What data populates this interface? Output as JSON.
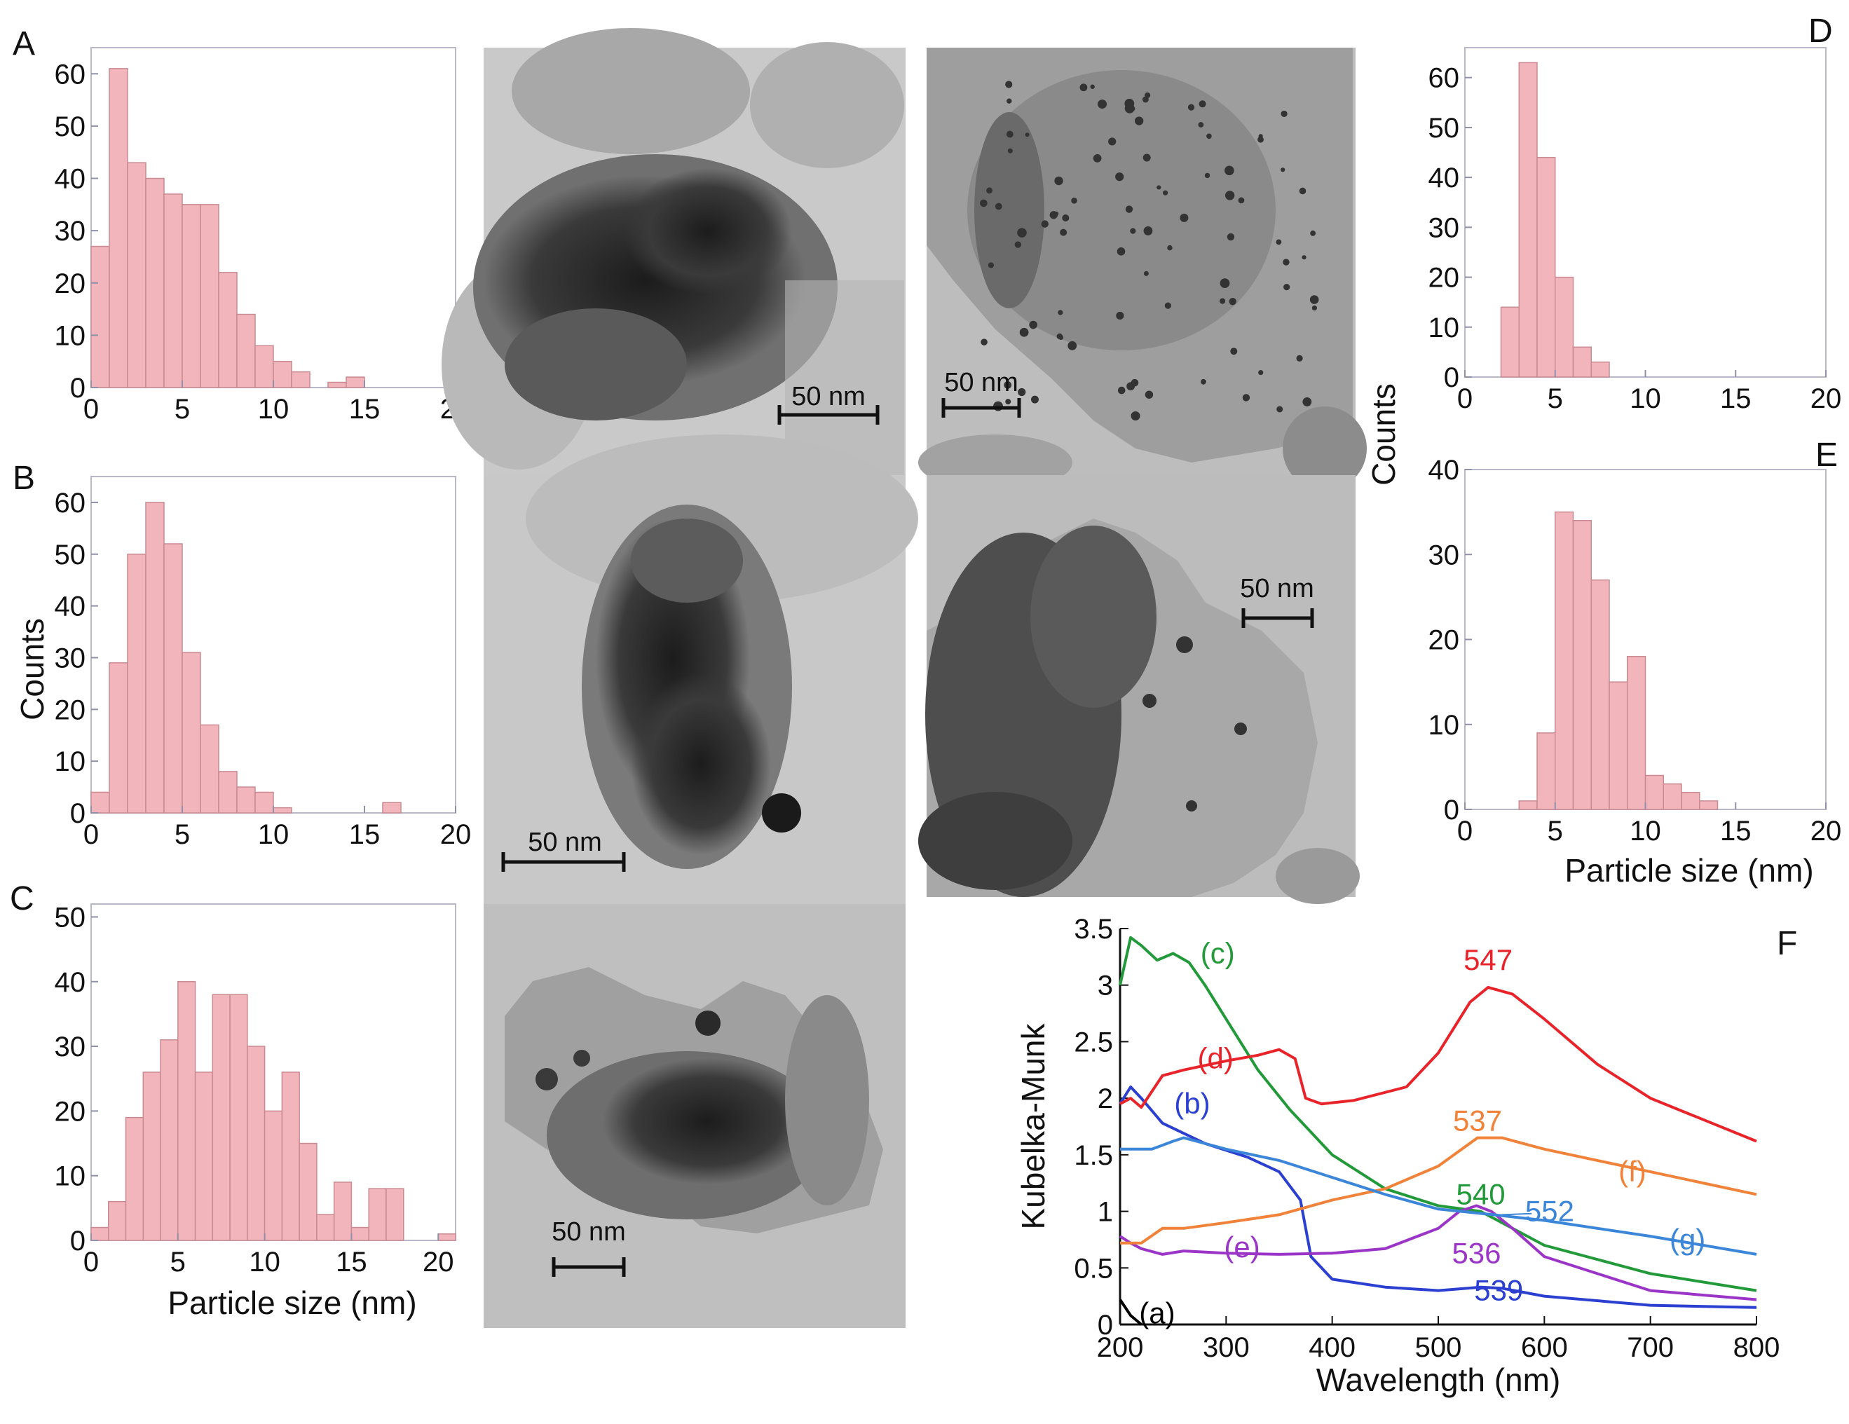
{
  "panel_labels": {
    "A": "A",
    "B": "B",
    "C": "C",
    "D": "D",
    "E": "E",
    "F": "F"
  },
  "histograms": {
    "A": {
      "yticks": [
        "0",
        "10",
        "20",
        "30",
        "40",
        "50",
        "60"
      ],
      "ymax": 65,
      "xticks": [
        "0",
        "5",
        "10",
        "15",
        "20"
      ],
      "xmax": 20,
      "values": [
        27,
        61,
        43,
        40,
        37,
        35,
        35,
        22,
        14,
        8,
        5,
        3,
        0,
        1,
        2,
        0,
        0,
        0,
        0,
        0
      ]
    },
    "B": {
      "yticks": [
        "0",
        "10",
        "20",
        "30",
        "40",
        "50",
        "60"
      ],
      "ymax": 65,
      "xticks": [
        "0",
        "5",
        "10",
        "15",
        "20"
      ],
      "xmax": 20,
      "values": [
        4,
        29,
        50,
        60,
        52,
        31,
        17,
        8,
        5,
        4,
        1,
        0,
        0,
        0,
        0,
        0,
        2,
        0,
        0,
        0
      ]
    },
    "C": {
      "yticks": [
        "0",
        "10",
        "20",
        "30",
        "40",
        "50"
      ],
      "ymax": 52,
      "xticks": [
        "0",
        "5",
        "10",
        "15",
        "20"
      ],
      "xmax": 21,
      "values": [
        2,
        6,
        19,
        26,
        31,
        40,
        26,
        38,
        38,
        30,
        20,
        26,
        15,
        4,
        9,
        2,
        8,
        8,
        0,
        0,
        1
      ]
    },
    "D": {
      "yticks": [
        "0",
        "10",
        "20",
        "30",
        "40",
        "50",
        "60"
      ],
      "ymax": 66,
      "xticks": [
        "0",
        "5",
        "10",
        "15",
        "20"
      ],
      "xmax": 20,
      "values": [
        0,
        0,
        14,
        63,
        44,
        20,
        6,
        3,
        0,
        0,
        0,
        0,
        0,
        0,
        0,
        0,
        0,
        0,
        0,
        0
      ]
    },
    "E": {
      "yticks": [
        "0",
        "10",
        "20",
        "30",
        "40"
      ],
      "ymax": 40,
      "xticks": [
        "0",
        "5",
        "10",
        "15",
        "20"
      ],
      "xmax": 20,
      "values": [
        0,
        0,
        0,
        1,
        9,
        35,
        34,
        27,
        15,
        18,
        4,
        3,
        2,
        1,
        0,
        0,
        0,
        0,
        0,
        0
      ]
    }
  },
  "axis_labels": {
    "counts_left": "Counts",
    "counts_right": "Counts",
    "particle_size_left": "Particle size (nm)",
    "particle_size_right": "Particle size (nm)"
  },
  "tem": {
    "scale_bar": "50 nm"
  },
  "chart_data": {
    "type": "line",
    "title": "",
    "xlabel": "Wavelength (nm)",
    "ylabel": "Kubelka-Munk",
    "xlim": [
      200,
      800
    ],
    "ylim": [
      0,
      3.5
    ],
    "xticks": [
      "200",
      "300",
      "400",
      "500",
      "600",
      "700",
      "800"
    ],
    "yticks": [
      "0",
      "0.5",
      "1",
      "1.5",
      "2",
      "2.5",
      "3",
      "3.5"
    ],
    "series": [
      {
        "name": "(a)",
        "color": "#000000",
        "x": [
          200,
          210,
          220
        ],
        "y": [
          0.22,
          0.08,
          0.0
        ]
      },
      {
        "name": "(b)",
        "color": "#2b3fd0",
        "x": [
          200,
          210,
          220,
          240,
          280,
          320,
          350,
          370,
          380,
          400,
          450,
          500,
          540,
          560,
          600,
          700,
          800
        ],
        "y": [
          1.95,
          2.1,
          2.0,
          1.78,
          1.6,
          1.48,
          1.35,
          1.1,
          0.6,
          0.4,
          0.33,
          0.3,
          0.33,
          0.32,
          0.25,
          0.17,
          0.15
        ]
      },
      {
        "name": "(c)",
        "color": "#239a3a",
        "x": [
          200,
          210,
          220,
          235,
          250,
          265,
          280,
          300,
          330,
          360,
          400,
          450,
          500,
          540,
          560,
          600,
          700,
          800
        ],
        "y": [
          3.0,
          3.42,
          3.35,
          3.22,
          3.28,
          3.2,
          3.0,
          2.7,
          2.25,
          1.9,
          1.5,
          1.2,
          1.05,
          1.0,
          0.9,
          0.7,
          0.45,
          0.3
        ]
      },
      {
        "name": "(d)",
        "color": "#e8242a",
        "x": [
          200,
          210,
          220,
          240,
          260,
          300,
          330,
          350,
          365,
          375,
          390,
          420,
          470,
          500,
          530,
          547,
          570,
          600,
          650,
          700,
          800
        ],
        "y": [
          1.95,
          2.0,
          1.92,
          2.2,
          2.25,
          2.33,
          2.38,
          2.43,
          2.35,
          2.0,
          1.95,
          1.98,
          2.1,
          2.4,
          2.85,
          2.98,
          2.92,
          2.7,
          2.3,
          2.0,
          1.62
        ]
      },
      {
        "name": "(e)",
        "color": "#9b35c8",
        "x": [
          200,
          210,
          220,
          240,
          260,
          300,
          350,
          400,
          450,
          500,
          520,
          536,
          550,
          570,
          600,
          700,
          800
        ],
        "y": [
          0.78,
          0.72,
          0.67,
          0.62,
          0.65,
          0.63,
          0.62,
          0.63,
          0.67,
          0.85,
          1.0,
          1.05,
          1.0,
          0.85,
          0.6,
          0.3,
          0.22
        ]
      },
      {
        "name": "(f)",
        "color": "#f0823a",
        "x": [
          200,
          220,
          240,
          260,
          300,
          350,
          400,
          450,
          500,
          537,
          560,
          600,
          700,
          800
        ],
        "y": [
          0.72,
          0.72,
          0.85,
          0.85,
          0.9,
          0.97,
          1.1,
          1.2,
          1.4,
          1.65,
          1.65,
          1.55,
          1.35,
          1.15
        ]
      },
      {
        "name": "(g)",
        "color": "#3b86d8",
        "x": [
          200,
          210,
          230,
          250,
          260,
          300,
          350,
          400,
          450,
          500,
          552,
          600,
          700,
          800
        ],
        "y": [
          1.55,
          1.55,
          1.55,
          1.62,
          1.65,
          1.55,
          1.45,
          1.3,
          1.15,
          1.02,
          0.97,
          0.92,
          0.78,
          0.62
        ]
      }
    ],
    "curve_labels": [
      {
        "text": "(a)",
        "color": "#000000",
        "x": 235,
        "y": 0.1
      },
      {
        "text": "(b)",
        "color": "#2b3fd0",
        "x": 268,
        "y": 1.95
      },
      {
        "text": "(c)",
        "color": "#239a3a",
        "x": 292,
        "y": 3.28
      },
      {
        "text": "(d)",
        "color": "#e8242a",
        "x": 290,
        "y": 2.35
      },
      {
        "text": "(e)",
        "color": "#9b35c8",
        "x": 315,
        "y": 0.68
      },
      {
        "text": "(f)",
        "color": "#f0823a",
        "x": 683,
        "y": 1.35
      },
      {
        "text": "(g)",
        "color": "#3b86d8",
        "x": 735,
        "y": 0.75
      },
      {
        "text": "547",
        "color": "#e8242a",
        "x": 547,
        "y": 3.22
      },
      {
        "text": "537",
        "color": "#f0823a",
        "x": 537,
        "y": 1.8
      },
      {
        "text": "540",
        "color": "#239a3a",
        "x": 540,
        "y": 1.15
      },
      {
        "text": "552",
        "color": "#3b86d8",
        "x": 605,
        "y": 1.0
      },
      {
        "text": "536",
        "color": "#9b35c8",
        "x": 536,
        "y": 0.63
      },
      {
        "text": "539",
        "color": "#2b3fd0",
        "x": 557,
        "y": 0.3
      }
    ]
  }
}
